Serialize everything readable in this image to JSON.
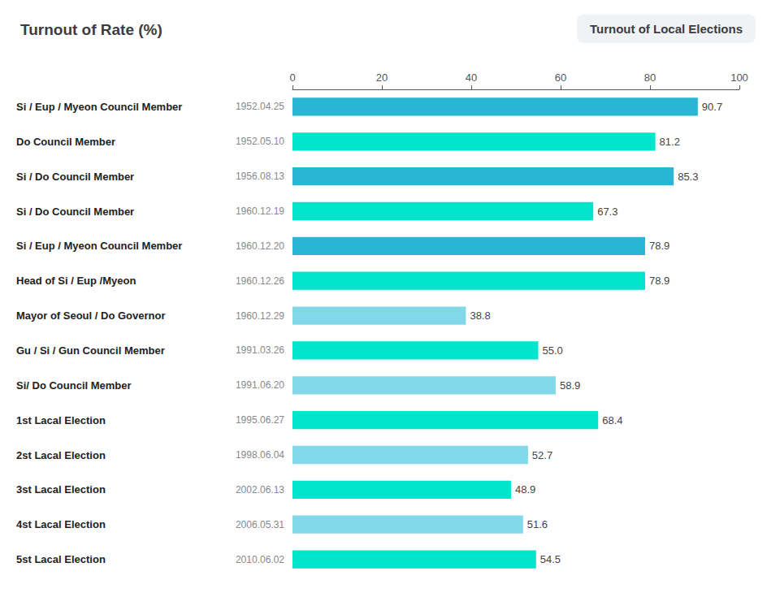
{
  "chart_data": {
    "type": "bar",
    "orientation": "horizontal",
    "title": "Turnout of Rate (%)",
    "subtitle": "Turnout of Local Elections",
    "categories": [
      "Si / Eup / Myeon Council Member",
      "Do Council Member",
      "Si / Do Council Member",
      "Si / Do Council Member",
      "Si / Eup / Myeon Council Member",
      "Head of Si / Eup /Myeon",
      "Mayor of Seoul / Do Governor",
      "Gu / Si / Gun Council Member",
      "Si/ Do Council Member",
      "1st Lacal Election",
      "2st Lacal Election",
      "3st Lacal Election",
      "4st Lacal Election",
      "5st Lacal Election"
    ],
    "dates": [
      "1952.04.25",
      "1952.05.10",
      "1956.08.13",
      "1960.12.19",
      "1960.12.20",
      "1960.12.26",
      "1960.12.29",
      "1991.03.26",
      "1991.06.20",
      "1995.06.27",
      "1998.06.04",
      "2002.06.13",
      "2006.05.31",
      "2010.06.02"
    ],
    "values": [
      90.7,
      81.2,
      85.3,
      67.3,
      78.9,
      78.9,
      38.8,
      55.0,
      58.9,
      68.4,
      52.7,
      48.9,
      51.6,
      54.5
    ],
    "value_labels": [
      "90.7",
      "81.2",
      "85.3",
      "67.3",
      "78.9",
      "78.9",
      "38.8",
      "55.0",
      "58.9",
      "68.4",
      "52.7",
      "48.9",
      "51.6",
      "54.5"
    ],
    "colors": [
      "#29b6d4",
      "#00e5cc",
      "#29b6d4",
      "#00e5cc",
      "#29b6d4",
      "#00e5cc",
      "#80d8e8",
      "#00e5cc",
      "#80d8e8",
      "#00e5cc",
      "#80d8e8",
      "#00e5cc",
      "#80d8e8",
      "#00e5cc"
    ],
    "xlim": [
      0,
      100
    ],
    "xticks": [
      0,
      20,
      40,
      60,
      80,
      100
    ],
    "data_labels": true,
    "grid": false
  }
}
